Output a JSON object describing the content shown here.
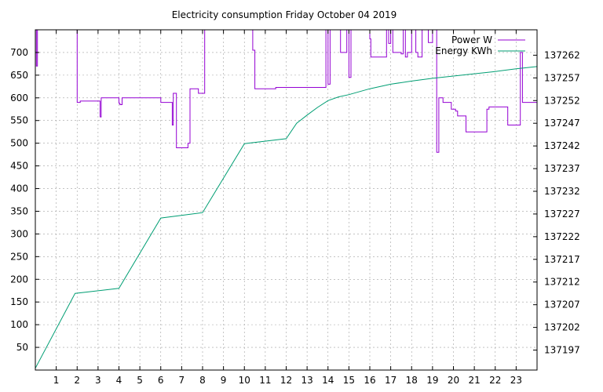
{
  "chart_data": {
    "type": "line",
    "title": "Electricity consumption Friday October 04 2019",
    "x_ticks": [
      "1",
      "2",
      "3",
      "4",
      "5",
      "6",
      "7",
      "8",
      "9",
      "10",
      "11",
      "12",
      "13",
      "14",
      "15",
      "16",
      "17",
      "18",
      "19",
      "20",
      "21",
      "22",
      "23"
    ],
    "xlim": [
      0,
      24
    ],
    "y_ticks": [
      "50",
      "100",
      "150",
      "200",
      "250",
      "300",
      "350",
      "400",
      "450",
      "500",
      "550",
      "600",
      "650",
      "700"
    ],
    "ylim": [
      0,
      750
    ],
    "y2_ticks": [
      "137197",
      "137202",
      "137207",
      "137212",
      "137217",
      "137222",
      "137227",
      "137232",
      "137237",
      "137242",
      "137247",
      "137252",
      "137257",
      "137262"
    ],
    "y2lim": [
      137192.6,
      137267.6
    ],
    "grid": true,
    "legend_position": "top-right",
    "colors": {
      "power": "#9400d3",
      "energy": "#009e73"
    },
    "series": [
      {
        "name": "Power W",
        "axis": "left",
        "step": true,
        "x": [
          0,
          0.05,
          0.1,
          1.95,
          2.0,
          2.15,
          2.3,
          2.95,
          3.05,
          3.1,
          3.15,
          3.95,
          4.0,
          4.05,
          4.15,
          5.95,
          6.0,
          6.1,
          6.5,
          6.55,
          6.6,
          6.7,
          6.75,
          7.2,
          7.3,
          7.4,
          7.7,
          7.8,
          8.0,
          8.1,
          10.3,
          10.4,
          10.5,
          11.5,
          11.7,
          12.0,
          13.9,
          14.0,
          14.1,
          14.5,
          14.6,
          14.9,
          15.0,
          15.1,
          15.9,
          16.0,
          16.05,
          16.1,
          16.7,
          16.8,
          16.9,
          17.0,
          17.1,
          17.5,
          17.6,
          17.7,
          17.8,
          18.0,
          18.2,
          18.3,
          18.5,
          18.8,
          19.0,
          19.2,
          19.3,
          19.5,
          19.7,
          19.9,
          20.1,
          20.2,
          20.3,
          20.6,
          20.7,
          21.0,
          21.3,
          21.6,
          21.7,
          21.8,
          21.9,
          22.5,
          22.6,
          23.0,
          23.1,
          23.2,
          23.3,
          23.9,
          24.0
        ],
        "values": [
          750,
          670,
          750,
          750,
          590,
          593,
          593,
          593,
          593,
          558,
          600,
          600,
          588,
          585,
          600,
          600,
          590,
          590,
          590,
          540,
          610,
          610,
          490,
          490,
          500,
          620,
          620,
          610,
          610,
          750,
          750,
          705,
          620,
          623,
          623,
          623,
          750,
          630,
          750,
          750,
          700,
          750,
          645,
          750,
          750,
          730,
          690,
          690,
          690,
          750,
          720,
          750,
          700,
          697,
          750,
          690,
          700,
          750,
          700,
          690,
          750,
          722,
          750,
          480,
          600,
          590,
          590,
          575,
          571,
          560,
          560,
          525,
          525,
          525,
          525,
          575,
          580,
          580,
          580,
          580,
          540,
          540,
          540,
          700,
          590,
          590,
          450
        ]
      },
      {
        "name": "Energy KWh",
        "axis": "right",
        "step": false,
        "x": [
          0,
          1.9,
          4.0,
          6.0,
          8.0,
          10.0,
          12.0,
          12.5,
          13.0,
          13.5,
          14.0,
          14.5,
          15.0,
          16.0,
          17.0,
          18.0,
          19.0,
          20.0,
          21.0,
          22.0,
          23.0,
          24.0
        ],
        "values": [
          137193.0,
          137209.5,
          137210.6,
          137226.1,
          137227.3,
          137242.5,
          137243.6,
          137247.0,
          137248.8,
          137250.5,
          137252.0,
          137252.8,
          137253.3,
          137254.6,
          137255.6,
          137256.3,
          137256.9,
          137257.4,
          137257.9,
          137258.4,
          137259.0,
          137259.5
        ]
      }
    ]
  }
}
